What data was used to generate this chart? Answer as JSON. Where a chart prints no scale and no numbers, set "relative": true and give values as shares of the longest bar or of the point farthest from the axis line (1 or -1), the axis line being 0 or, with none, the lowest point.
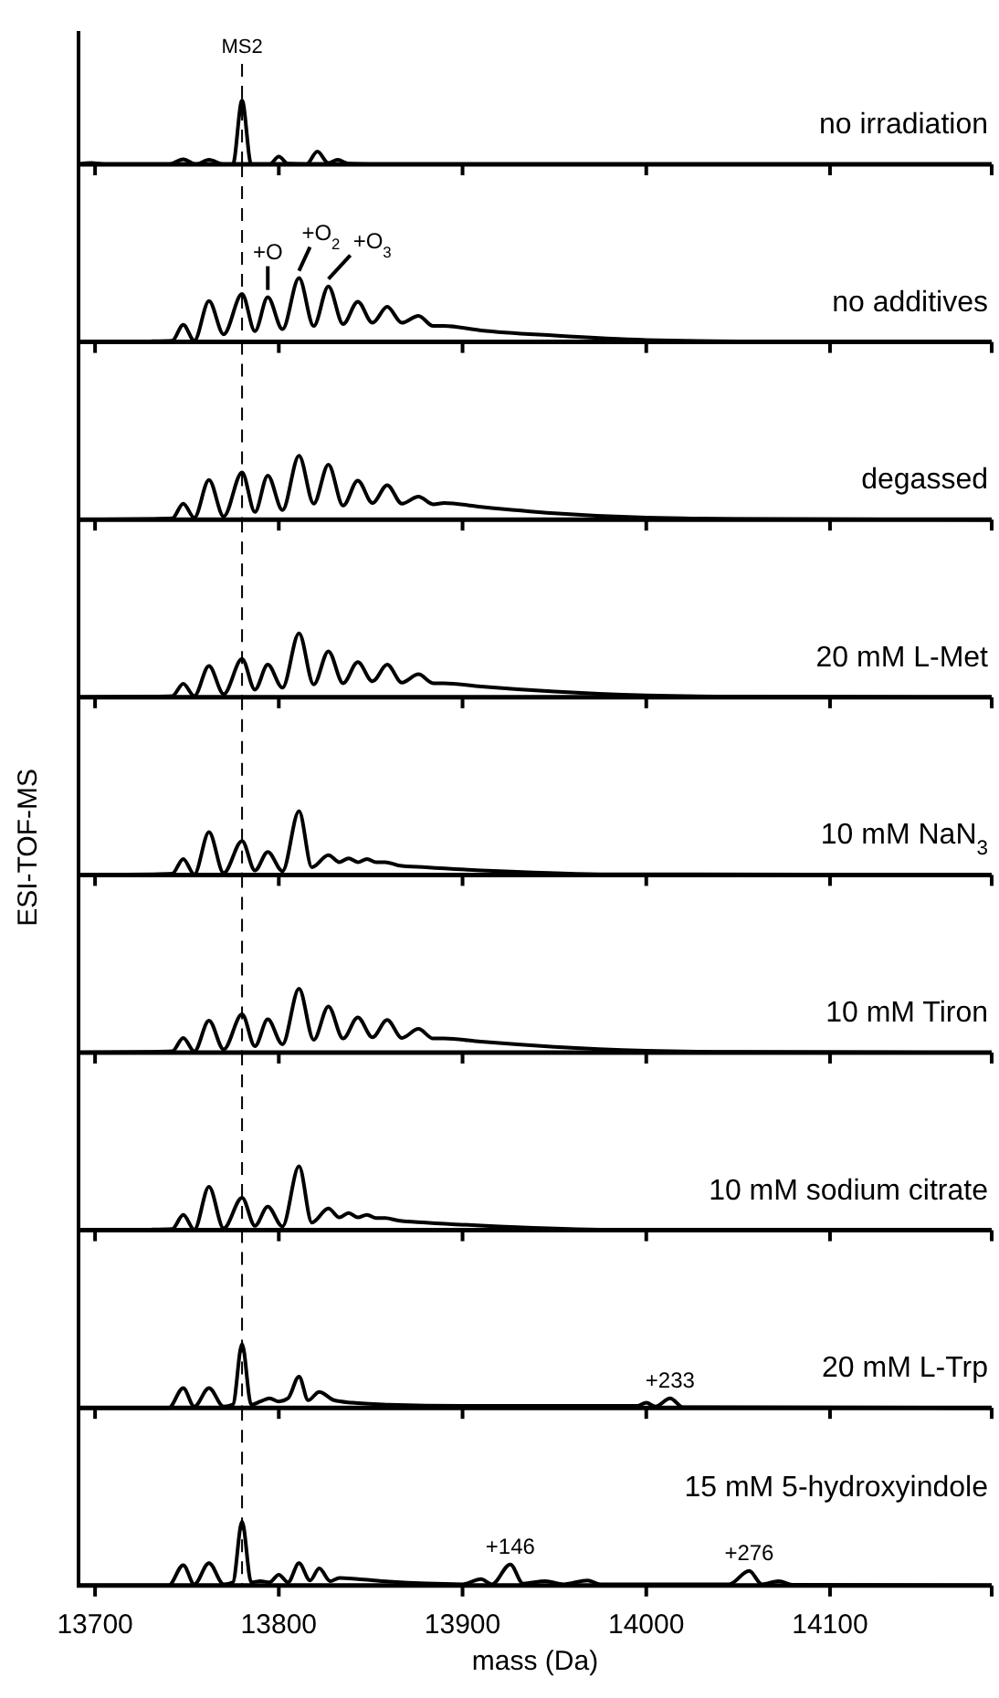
{
  "chart_data": [
    {
      "type": "line",
      "title": "no irradiation",
      "relative": true,
      "color": "#000000",
      "xlim": [
        13691,
        14188
      ],
      "xticks": [
        13700,
        13800,
        13900,
        14000,
        14100
      ],
      "tick_labels": false,
      "ref_lines": [
        {
          "axis": "x",
          "value": 13780,
          "label": "MS2",
          "line_style": "dashed"
        }
      ],
      "x": [
        13691,
        13698,
        13705,
        13740,
        13748,
        13755,
        13762,
        13770,
        13775,
        13780,
        13785,
        13795,
        13800,
        13805,
        13815,
        13821,
        13827,
        13832,
        13838,
        13850,
        14188
      ],
      "values": [
        0,
        0.02,
        0,
        0,
        0.08,
        0,
        0.07,
        0,
        0,
        1,
        0,
        0,
        0.12,
        0.01,
        0,
        0.2,
        0.02,
        0.07,
        0.01,
        0,
        0
      ]
    },
    {
      "type": "line",
      "title": "no additives",
      "relative": true,
      "color": "#000000",
      "xlim": [
        13691,
        14188
      ],
      "xticks": [
        13700,
        13800,
        13900,
        14000,
        14100
      ],
      "tick_labels": false,
      "ref_lines": [
        {
          "axis": "x",
          "value": 13780,
          "line_style": "dashed"
        }
      ],
      "annotations": [
        {
          "text": "+O",
          "x": 13794,
          "y": 0.7
        },
        {
          "text": "+O$_{2}$",
          "x": 13811,
          "y": 1
        },
        {
          "text": "+O$_{3}$",
          "x": 13827,
          "y": 0.87
        }
      ],
      "x": [
        13691,
        13730,
        13742,
        13748,
        13754,
        13762,
        13770,
        13780,
        13787,
        13794,
        13802,
        13811,
        13819,
        13827,
        13835,
        13843,
        13851,
        13859,
        13867,
        13876,
        13884,
        13890,
        13910,
        13950,
        14000,
        14050,
        14188
      ],
      "values": [
        0,
        0.01,
        0.02,
        0.27,
        0.02,
        0.64,
        0.12,
        0.75,
        0.17,
        0.7,
        0.2,
        1,
        0.25,
        0.87,
        0.28,
        0.63,
        0.3,
        0.55,
        0.3,
        0.41,
        0.25,
        0.25,
        0.18,
        0.1,
        0.03,
        0.01,
        0
      ]
    },
    {
      "type": "line",
      "title": "degassed",
      "relative": true,
      "color": "#000000",
      "xlim": [
        13691,
        14188
      ],
      "xticks": [
        13700,
        13800,
        13900,
        14000,
        14100
      ],
      "tick_labels": false,
      "ref_lines": [
        {
          "axis": "x",
          "value": 13780,
          "line_style": "dashed"
        }
      ],
      "x": [
        13691,
        13730,
        13742,
        13748,
        13754,
        13762,
        13770,
        13780,
        13787,
        13794,
        13802,
        13811,
        13819,
        13827,
        13835,
        13843,
        13851,
        13859,
        13867,
        13876,
        13884,
        13890,
        13910,
        13950,
        14000,
        14050,
        14188
      ],
      "values": [
        0,
        0.01,
        0.02,
        0.25,
        0.03,
        0.62,
        0.05,
        0.74,
        0.12,
        0.69,
        0.15,
        1,
        0.25,
        0.86,
        0.22,
        0.61,
        0.26,
        0.54,
        0.25,
        0.36,
        0.24,
        0.26,
        0.2,
        0.1,
        0.03,
        0.01,
        0
      ]
    },
    {
      "type": "line",
      "title": "20 mM L-Met",
      "relative": true,
      "color": "#000000",
      "xlim": [
        13691,
        14188
      ],
      "xticks": [
        13700,
        13800,
        13900,
        14000,
        14100
      ],
      "tick_labels": false,
      "ref_lines": [
        {
          "axis": "x",
          "value": 13780,
          "line_style": "dashed"
        }
      ],
      "x": [
        13691,
        13730,
        13742,
        13748,
        13754,
        13762,
        13770,
        13780,
        13787,
        13794,
        13802,
        13811,
        13819,
        13827,
        13835,
        13843,
        13851,
        13859,
        13867,
        13876,
        13884,
        13890,
        13910,
        13950,
        14000,
        14050,
        14188
      ],
      "values": [
        0,
        0.01,
        0.02,
        0.21,
        0.02,
        0.49,
        0.05,
        0.6,
        0.12,
        0.51,
        0.15,
        1,
        0.2,
        0.72,
        0.22,
        0.55,
        0.25,
        0.51,
        0.23,
        0.36,
        0.22,
        0.22,
        0.17,
        0.09,
        0.03,
        0.01,
        0
      ]
    },
    {
      "type": "line",
      "title": "10 mM NaN$_{3}$",
      "ylabel": "ESI-TOF-MS",
      "relative": true,
      "color": "#000000",
      "xlim": [
        13691,
        14188
      ],
      "xticks": [
        13700,
        13800,
        13900,
        14000,
        14100
      ],
      "tick_labels": false,
      "ref_lines": [
        {
          "axis": "x",
          "value": 13780,
          "line_style": "dashed"
        }
      ],
      "x": [
        13691,
        13730,
        13742,
        13748,
        13754,
        13762,
        13770,
        13780,
        13787,
        13794,
        13802,
        13811,
        13818,
        13827,
        13833,
        13838,
        13843,
        13848,
        13853,
        13858,
        13865,
        13880,
        13920,
        13980,
        14188
      ],
      "values": [
        0,
        0.01,
        0.02,
        0.25,
        0.01,
        0.67,
        0.03,
        0.53,
        0.07,
        0.36,
        0.06,
        1,
        0.12,
        0.31,
        0.2,
        0.26,
        0.2,
        0.25,
        0.2,
        0.2,
        0.15,
        0.12,
        0.06,
        0.01,
        0
      ]
    },
    {
      "type": "line",
      "title": "10 mM Tiron",
      "relative": true,
      "color": "#000000",
      "xlim": [
        13691,
        14188
      ],
      "xticks": [
        13700,
        13800,
        13900,
        14000,
        14100
      ],
      "tick_labels": false,
      "ref_lines": [
        {
          "axis": "x",
          "value": 13780,
          "line_style": "dashed"
        }
      ],
      "x": [
        13691,
        13730,
        13742,
        13748,
        13754,
        13762,
        13770,
        13780,
        13787,
        13794,
        13802,
        13811,
        13819,
        13827,
        13835,
        13843,
        13851,
        13859,
        13867,
        13876,
        13884,
        13890,
        13910,
        13950,
        14000,
        14050,
        14188
      ],
      "values": [
        0,
        0.01,
        0.02,
        0.23,
        0.02,
        0.5,
        0.05,
        0.6,
        0.1,
        0.52,
        0.13,
        1,
        0.2,
        0.72,
        0.22,
        0.55,
        0.24,
        0.51,
        0.23,
        0.37,
        0.22,
        0.22,
        0.17,
        0.09,
        0.03,
        0.01,
        0
      ]
    },
    {
      "type": "line",
      "title": "10 mM sodium citrate",
      "relative": true,
      "color": "#000000",
      "xlim": [
        13691,
        14188
      ],
      "xticks": [
        13700,
        13800,
        13900,
        14000,
        14100
      ],
      "tick_labels": false,
      "ref_lines": [
        {
          "axis": "x",
          "value": 13780,
          "line_style": "dashed"
        }
      ],
      "x": [
        13691,
        13730,
        13742,
        13748,
        13754,
        13762,
        13770,
        13780,
        13787,
        13794,
        13802,
        13811,
        13818,
        13827,
        13833,
        13838,
        13843,
        13848,
        13853,
        13858,
        13865,
        13880,
        13920,
        13980,
        14188
      ],
      "values": [
        0,
        0.01,
        0.02,
        0.24,
        0.01,
        0.68,
        0.03,
        0.51,
        0.07,
        0.37,
        0.06,
        1,
        0.12,
        0.34,
        0.2,
        0.27,
        0.2,
        0.24,
        0.19,
        0.19,
        0.15,
        0.12,
        0.06,
        0.01,
        0
      ]
    },
    {
      "type": "line",
      "title": "20 mM L-Trp",
      "relative": true,
      "color": "#000000",
      "xlim": [
        13691,
        14188
      ],
      "xticks": [
        13700,
        13800,
        13900,
        14000,
        14100
      ],
      "tick_labels": false,
      "ref_lines": [
        {
          "axis": "x",
          "value": 13780,
          "line_style": "dashed"
        }
      ],
      "annotations": [
        {
          "text": "+233",
          "x": 14013,
          "y": 0.15
        }
      ],
      "x": [
        13691,
        13740,
        13748,
        13754,
        13762,
        13770,
        13775,
        13780,
        13785,
        13790,
        13795,
        13800,
        13805,
        13811,
        13816,
        13822,
        13830,
        13840,
        13860,
        13900,
        13950,
        13995,
        14000,
        14005,
        14013,
        14020,
        14188
      ],
      "values": [
        0,
        0,
        0.31,
        0.02,
        0.31,
        0.02,
        0.05,
        1,
        0.05,
        0.1,
        0.15,
        0.1,
        0.15,
        0.49,
        0.12,
        0.25,
        0.12,
        0.08,
        0.05,
        0.03,
        0.03,
        0.03,
        0.08,
        0.02,
        0.15,
        0.01,
        0
      ]
    },
    {
      "type": "line",
      "title": "15 mM 5-hydroxyindole",
      "xlabel": "mass (Da)",
      "relative": true,
      "color": "#000000",
      "xlim": [
        13691,
        14188
      ],
      "xticks": [
        13700,
        13800,
        13900,
        14000,
        14100
      ],
      "tick_labels": "x",
      "ref_lines": [
        {
          "axis": "x",
          "value": 13780,
          "line_style": "dashed"
        }
      ],
      "annotations": [
        {
          "text": "+146",
          "x": 13926,
          "y": 0.33
        },
        {
          "text": "+276",
          "x": 14056,
          "y": 0.23
        }
      ],
      "x": [
        13691,
        13740,
        13748,
        13754,
        13762,
        13770,
        13775,
        13780,
        13785,
        13790,
        13795,
        13800,
        13805,
        13811,
        13817,
        13822,
        13828,
        13833,
        13843,
        13860,
        13900,
        13910,
        13916,
        13926,
        13933,
        13945,
        13955,
        13968,
        13975,
        14000,
        14045,
        14056,
        14063,
        14072,
        14080,
        14188
      ],
      "values": [
        0,
        0,
        0.32,
        0.02,
        0.35,
        0.02,
        0.05,
        1,
        0.05,
        0.07,
        0.05,
        0.17,
        0.05,
        0.35,
        0.08,
        0.27,
        0.07,
        0.12,
        0.1,
        0.06,
        0.02,
        0.1,
        0.02,
        0.33,
        0.03,
        0.07,
        0.02,
        0.08,
        0.02,
        0.02,
        0.02,
        0.23,
        0.02,
        0.07,
        0.01,
        0
      ]
    }
  ]
}
